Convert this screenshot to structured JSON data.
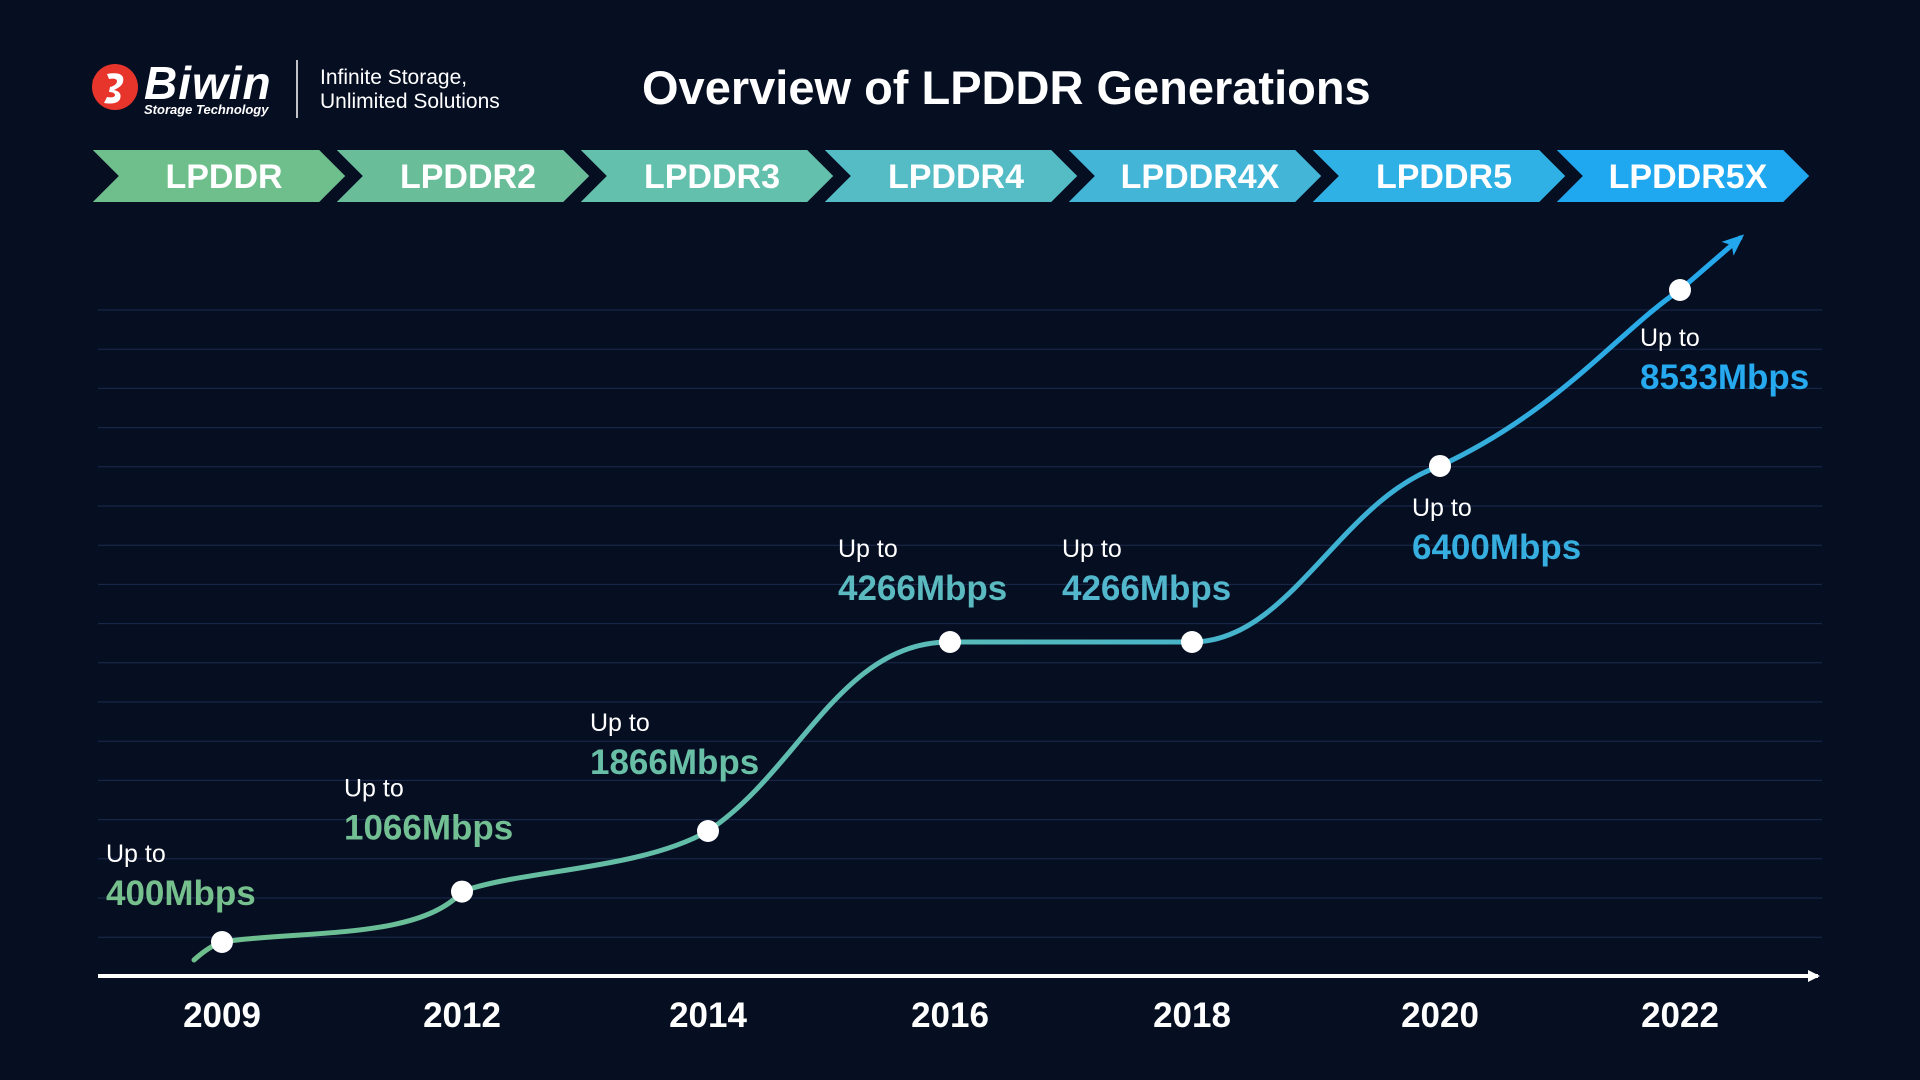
{
  "brand": {
    "name": "Biwin",
    "subtitle": "Storage Technology",
    "tagline_line1": "Infinite Storage,",
    "tagline_line2": "Unlimited Solutions",
    "logo_mark_color": "#e8352b"
  },
  "title": "Overview of LPDDR Generations",
  "chart_data": {
    "type": "line",
    "title": "Overview of LPDDR Generations",
    "xlabel": "",
    "ylabel": "",
    "grid": true,
    "legend": "none",
    "x_ticks": [
      "2009",
      "2012",
      "2014",
      "2016",
      "2018",
      "2020",
      "2022"
    ],
    "generations": [
      {
        "name": "LPDDR",
        "color": "#6fbf8c"
      },
      {
        "name": "LPDDR2",
        "color": "#69bd98"
      },
      {
        "name": "LPDDR3",
        "color": "#63c0ac"
      },
      {
        "name": "LPDDR4",
        "color": "#55bcc5"
      },
      {
        "name": "LPDDR4X",
        "color": "#43b6d8"
      },
      {
        "name": "LPDDR5",
        "color": "#2fb1e6"
      },
      {
        "name": "LPDDR5X",
        "color": "#1fa8ef"
      }
    ],
    "series": [
      {
        "x": [
          "2009",
          "2012",
          "2014",
          "2016",
          "2018",
          "2020",
          "2022"
        ],
        "values": [
          400,
          1066,
          1866,
          4266,
          4266,
          6400,
          8533
        ],
        "prefix_labels": [
          "Up to",
          "Up to",
          "Up to",
          "Up to",
          "Up to",
          "Up to",
          "Up to"
        ],
        "value_labels": [
          "400Mbps",
          "1066Mbps",
          "1866Mbps",
          "4266Mbps",
          "4266Mbps",
          "6400Mbps",
          "8533Mbps"
        ],
        "label_colors": [
          "#76c08e",
          "#72bf93",
          "#68bfa6",
          "#5bbac0",
          "#52b6cc",
          "#36afe0",
          "#26a9ee"
        ]
      }
    ]
  }
}
